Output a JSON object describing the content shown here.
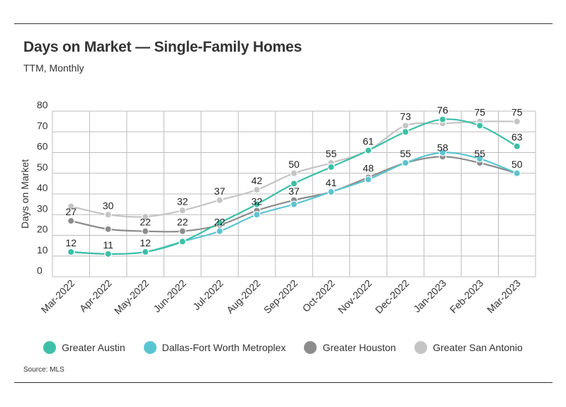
{
  "title": "Days on Market — Single-Family Homes",
  "subtitle": "TTM, Monthly",
  "source": "Source:  MLS",
  "chart_data": {
    "type": "line",
    "categories": [
      "Mar-2022",
      "Apr-2022",
      "May-2022",
      "Jun-2022",
      "Jul-2022",
      "Aug-2022",
      "Sep-2022",
      "Oct-2022",
      "Nov-2022",
      "Dec-2022",
      "Jan-2023",
      "Feb-2023",
      "Mar-2023"
    ],
    "ylabel": "Days on Market",
    "xlabel": "",
    "ylim": [
      0,
      80
    ],
    "yticks": [
      0,
      10,
      20,
      30,
      40,
      50,
      60,
      70,
      80
    ],
    "grid": true,
    "legend_position": "bottom",
    "series": [
      {
        "name": "Greater Austin",
        "color": "#3dbfa8",
        "values": [
          12,
          11,
          12,
          17,
          26,
          35,
          45,
          53,
          61,
          70,
          76,
          73,
          63
        ],
        "labeled": [
          false,
          false,
          false,
          false,
          false,
          false,
          false,
          false,
          false,
          false,
          false,
          false,
          true
        ]
      },
      {
        "name": "Dallas-Fort Worth Metroplex",
        "color": "#5bc4d1",
        "values": [
          12,
          11,
          12,
          17,
          22,
          30,
          35,
          41,
          47,
          55,
          60,
          57,
          50
        ],
        "labeled": [
          true,
          true,
          true,
          false,
          true,
          false,
          false,
          false,
          false,
          false,
          false,
          false,
          false
        ]
      },
      {
        "name": "Greater Houston",
        "color": "#8c8c8c",
        "values": [
          27,
          23,
          22,
          22,
          25,
          32,
          37,
          41,
          48,
          55,
          58,
          55,
          50
        ],
        "labeled": [
          true,
          false,
          true,
          true,
          true,
          true,
          true,
          true,
          true,
          true,
          true,
          true,
          true
        ]
      },
      {
        "name": "Greater San Antonio",
        "color": "#c4c4c4",
        "values": [
          34,
          30,
          29,
          32,
          37,
          42,
          50,
          55,
          61,
          73,
          74,
          75,
          75
        ],
        "labeled": [
          false,
          true,
          false,
          true,
          true,
          true,
          true,
          true,
          true,
          true,
          false,
          true,
          true
        ]
      }
    ],
    "data_labels": [
      {
        "series": 1,
        "index": 0,
        "text": "12"
      },
      {
        "series": 1,
        "index": 1,
        "text": "11"
      },
      {
        "series": 1,
        "index": 2,
        "text": "12"
      },
      {
        "series": 1,
        "index": 4,
        "text": "22"
      },
      {
        "series": 2,
        "index": 0,
        "text": "27"
      },
      {
        "series": 2,
        "index": 2,
        "text": "22"
      },
      {
        "series": 2,
        "index": 3,
        "text": "22"
      },
      {
        "series": 2,
        "index": 5,
        "text": "32"
      },
      {
        "series": 2,
        "index": 6,
        "text": "37"
      },
      {
        "series": 2,
        "index": 7,
        "text": "41"
      },
      {
        "series": 2,
        "index": 8,
        "text": "48"
      },
      {
        "series": 2,
        "index": 9,
        "text": "55"
      },
      {
        "series": 2,
        "index": 10,
        "text": "58"
      },
      {
        "series": 2,
        "index": 11,
        "text": "55"
      },
      {
        "series": 2,
        "index": 12,
        "text": "50"
      },
      {
        "series": 3,
        "index": 1,
        "text": "30"
      },
      {
        "series": 3,
        "index": 3,
        "text": "32"
      },
      {
        "series": 3,
        "index": 4,
        "text": "37"
      },
      {
        "series": 3,
        "index": 5,
        "text": "42"
      },
      {
        "series": 3,
        "index": 6,
        "text": "50"
      },
      {
        "series": 3,
        "index": 7,
        "text": "55"
      },
      {
        "series": 3,
        "index": 8,
        "text": "61"
      },
      {
        "series": 3,
        "index": 9,
        "text": "73"
      },
      {
        "series": 0,
        "index": 10,
        "text": "76"
      },
      {
        "series": 3,
        "index": 11,
        "text": "75"
      },
      {
        "series": 3,
        "index": 12,
        "text": "75"
      },
      {
        "series": 0,
        "index": 12,
        "text": "63"
      }
    ]
  }
}
